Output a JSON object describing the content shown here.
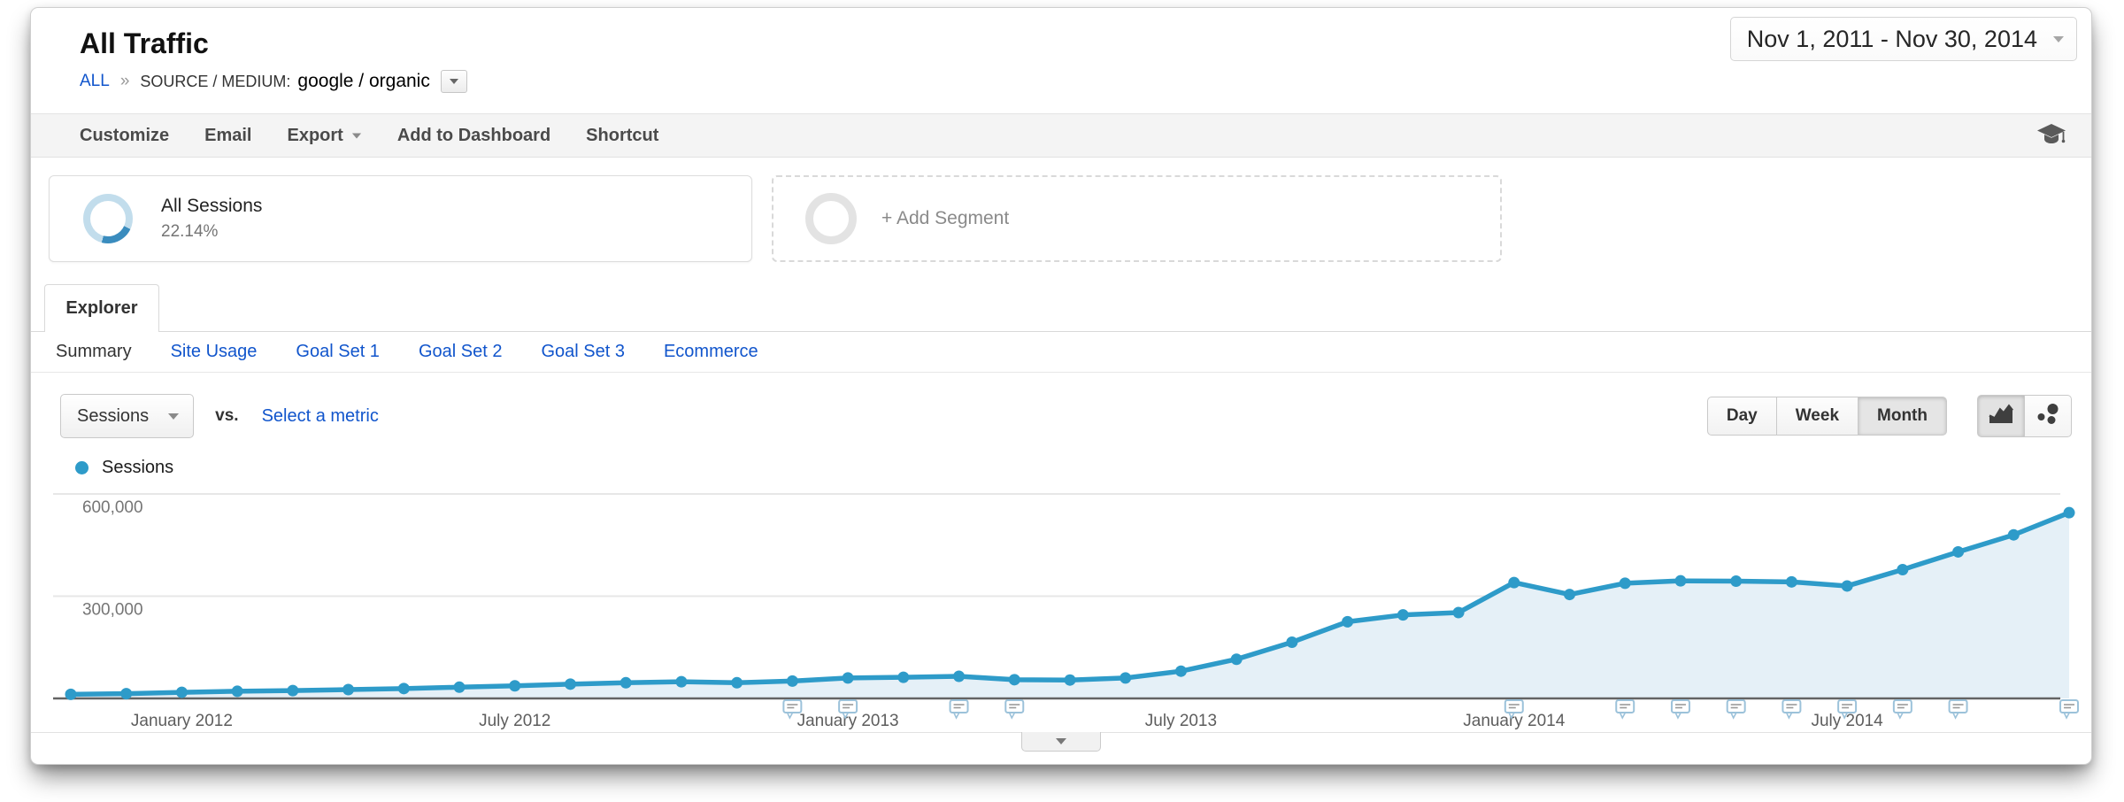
{
  "page": {
    "title": "All Traffic"
  },
  "breadcrumb": {
    "all": "ALL",
    "separator": "»",
    "dimension": "SOURCE / MEDIUM:",
    "value": "google / organic"
  },
  "date_range": {
    "label": "Nov 1, 2011 - Nov 30, 2014"
  },
  "toolbar": {
    "customize": "Customize",
    "email": "Email",
    "export": "Export",
    "add_to_dashboard": "Add to Dashboard",
    "shortcut": "Shortcut"
  },
  "segments": {
    "all_sessions": {
      "title": "All Sessions",
      "percent": "22.14%"
    },
    "add": {
      "label": "+ Add Segment"
    }
  },
  "tabs": {
    "explorer_label": "Explorer"
  },
  "subnav": {
    "items": [
      "Summary",
      "Site Usage",
      "Goal Set 1",
      "Goal Set 2",
      "Goal Set 3",
      "Ecommerce"
    ],
    "active_item": "Summary"
  },
  "metric_bar": {
    "metric_label": "Sessions",
    "vs_label": "vs.",
    "select_metric_label": "Select a metric",
    "day": "Day",
    "week": "Week",
    "month": "Month",
    "active_granularity": "Month",
    "active_chart_mode": "line"
  },
  "legend": {
    "sessions": "Sessions"
  },
  "colors": {
    "line": "#2e9bc9",
    "area": "#e5f0f7",
    "axis": "#636363",
    "grid": "#e7e7e7",
    "axis_label": "#757575",
    "tick_label": "#5d5d5d",
    "annotation_border": "#9cc2da",
    "annotation_lines": "#9a9a9a",
    "link": "#1155cc",
    "donut_accent": "#3a8cbe",
    "donut_track": "#c2ddec"
  },
  "chart_data": {
    "type": "line",
    "title": "Sessions by month",
    "legend_position": "top-left",
    "grid": "horizontal",
    "ylim": [
      0,
      600000
    ],
    "yticks": [
      {
        "value": 600000,
        "label": "600,000"
      },
      {
        "value": 300000,
        "label": "300,000"
      }
    ],
    "x": [
      "Nov 2011",
      "Dec 2011",
      "Jan 2012",
      "Feb 2012",
      "Mar 2012",
      "Apr 2012",
      "May 2012",
      "Jun 2012",
      "Jul 2012",
      "Aug 2012",
      "Sep 2012",
      "Oct 2012",
      "Nov 2012",
      "Dec 2012",
      "Jan 2013",
      "Feb 2013",
      "Mar 2013",
      "Apr 2013",
      "May 2013",
      "Jun 2013",
      "Jul 2013",
      "Aug 2013",
      "Sep 2013",
      "Oct 2013",
      "Nov 2013",
      "Dec 2013",
      "Jan 2014",
      "Feb 2014",
      "Mar 2014",
      "Apr 2014",
      "May 2014",
      "Jun 2014",
      "Jul 2014",
      "Aug 2014",
      "Sep 2014",
      "Oct 2014",
      "Nov 2014"
    ],
    "x_tick_labels": [
      {
        "index": 2,
        "label": "January 2012"
      },
      {
        "index": 8,
        "label": "July 2012"
      },
      {
        "index": 14,
        "label": "January 2013"
      },
      {
        "index": 20,
        "label": "July 2013"
      },
      {
        "index": 26,
        "label": "January 2014"
      },
      {
        "index": 32,
        "label": "July 2014"
      }
    ],
    "series": [
      {
        "name": "Sessions",
        "values": [
          12000,
          14000,
          18000,
          21000,
          23000,
          26000,
          29000,
          33000,
          37000,
          42000,
          46000,
          49000,
          46000,
          51000,
          60000,
          62000,
          65000,
          55000,
          54000,
          60000,
          80000,
          115000,
          165000,
          225000,
          245000,
          252000,
          340000,
          305000,
          338000,
          345000,
          344000,
          342000,
          330000,
          378000,
          430000,
          480000,
          545000
        ]
      }
    ],
    "annotations_at": [
      "Dec 2012",
      "Jan 2013",
      "Mar 2013",
      "Apr 2013",
      "Jan 2014",
      "Mar 2014",
      "Apr 2014",
      "May 2014",
      "Jun 2014",
      "Jul 2014",
      "Aug 2014",
      "Sep 2014",
      "Nov 2014"
    ]
  }
}
